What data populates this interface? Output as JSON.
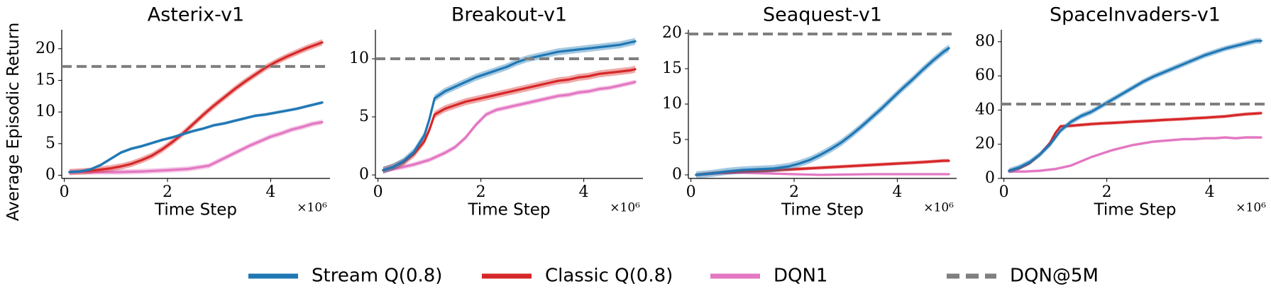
{
  "chart_data": {
    "ylabel": "Average Episodic Return",
    "legend": {
      "placement": "bottom-center",
      "entries": [
        {
          "key": "stream",
          "label": "Stream Q(0.8)",
          "color": "#1f77b4",
          "style": "solid"
        },
        {
          "key": "classic",
          "label": "Classic Q(0.8)",
          "color": "#d62728",
          "style": "solid"
        },
        {
          "key": "dqn1",
          "label": "DQN1",
          "color": "#e377c2",
          "style": "solid"
        },
        {
          "key": "dqn5m",
          "label": "DQN@5M",
          "color": "#7f7f7f",
          "style": "dashed"
        }
      ]
    },
    "panels": [
      {
        "type": "line",
        "title": "Asterix-v1",
        "xlabel": "Time Step",
        "x_multiplier": "×10⁶",
        "xlim": [
          -0.05,
          5.15
        ],
        "ylim": [
          -0.5,
          23
        ],
        "xticks": [
          0,
          2,
          4
        ],
        "yticks": [
          0,
          5,
          10,
          15,
          20
        ],
        "grid": false,
        "baseline": {
          "name": "DQN@5M",
          "value": 17.2
        },
        "series": [
          {
            "key": "stream",
            "name": "Stream Q(0.8)",
            "band": 0.25,
            "x": [
              0.1,
              0.3,
              0.5,
              0.7,
              0.9,
              1.1,
              1.3,
              1.5,
              1.7,
              1.9,
              2.1,
              2.3,
              2.5,
              2.7,
              2.9,
              3.1,
              3.3,
              3.5,
              3.7,
              3.9,
              4.1,
              4.3,
              4.5,
              4.7,
              4.9,
              5.0
            ],
            "y": [
              0.5,
              0.6,
              0.9,
              1.6,
              2.6,
              3.6,
              4.2,
              4.6,
              5.1,
              5.6,
              6.0,
              6.5,
              7.0,
              7.4,
              7.9,
              8.2,
              8.6,
              9.0,
              9.4,
              9.6,
              9.9,
              10.2,
              10.5,
              10.9,
              11.3,
              11.5
            ]
          },
          {
            "key": "classic",
            "name": "Classic Q(0.8)",
            "band": 0.5,
            "x": [
              0.1,
              0.3,
              0.5,
              0.7,
              0.9,
              1.1,
              1.3,
              1.5,
              1.7,
              1.9,
              2.1,
              2.3,
              2.5,
              2.7,
              2.9,
              3.1,
              3.3,
              3.5,
              3.7,
              3.9,
              4.1,
              4.3,
              4.5,
              4.7,
              4.9,
              5.0
            ],
            "y": [
              0.5,
              0.6,
              0.7,
              0.9,
              1.1,
              1.4,
              1.8,
              2.4,
              3.1,
              4.1,
              5.3,
              6.6,
              8.1,
              9.6,
              11.0,
              12.3,
              13.6,
              14.8,
              15.9,
              17.0,
              17.9,
              18.7,
              19.4,
              20.1,
              20.7,
              21.0
            ]
          },
          {
            "key": "dqn1",
            "name": "DQN1",
            "band": 0.4,
            "x": [
              0.1,
              0.5,
              1.0,
              1.5,
              2.0,
              2.4,
              2.8,
              3.0,
              3.2,
              3.4,
              3.6,
              3.8,
              4.0,
              4.2,
              4.4,
              4.6,
              4.8,
              5.0
            ],
            "y": [
              0.5,
              0.5,
              0.5,
              0.6,
              0.8,
              1.0,
              1.5,
              2.3,
              3.1,
              3.9,
              4.7,
              5.4,
              6.1,
              6.6,
              7.2,
              7.6,
              8.1,
              8.4
            ]
          }
        ]
      },
      {
        "type": "line",
        "title": "Breakout-v1",
        "xlabel": "Time Step",
        "x_multiplier": "×10⁶",
        "xlim": [
          -0.05,
          5.15
        ],
        "ylim": [
          -0.3,
          12.5
        ],
        "xticks": [
          0,
          2,
          4
        ],
        "yticks": [
          0,
          5,
          10
        ],
        "grid": false,
        "baseline": {
          "name": "DQN@5M",
          "value": 10.0
        },
        "series": [
          {
            "key": "stream",
            "name": "Stream Q(0.8)",
            "band": 0.3,
            "x": [
              0.1,
              0.3,
              0.5,
              0.7,
              0.9,
              1.0,
              1.1,
              1.3,
              1.5,
              1.7,
              1.9,
              2.1,
              2.3,
              2.5,
              2.7,
              2.9,
              3.1,
              3.3,
              3.5,
              3.7,
              3.9,
              4.1,
              4.3,
              4.5,
              4.7,
              4.9,
              5.0
            ],
            "y": [
              0.4,
              0.7,
              1.2,
              2.0,
              3.4,
              4.8,
              6.6,
              7.2,
              7.6,
              8.0,
              8.4,
              8.7,
              9.0,
              9.3,
              9.7,
              10.0,
              10.2,
              10.4,
              10.6,
              10.7,
              10.8,
              10.9,
              11.0,
              11.1,
              11.2,
              11.4,
              11.5
            ]
          },
          {
            "key": "classic",
            "name": "Classic Q(0.8)",
            "band": 0.3,
            "x": [
              0.1,
              0.3,
              0.5,
              0.7,
              0.9,
              1.0,
              1.1,
              1.3,
              1.5,
              1.7,
              1.9,
              2.1,
              2.3,
              2.5,
              2.7,
              2.9,
              3.1,
              3.3,
              3.5,
              3.7,
              3.9,
              4.1,
              4.3,
              4.5,
              4.7,
              4.9,
              5.0
            ],
            "y": [
              0.4,
              0.7,
              1.1,
              1.8,
              2.9,
              3.9,
              5.2,
              5.7,
              6.0,
              6.3,
              6.5,
              6.7,
              6.9,
              7.1,
              7.3,
              7.5,
              7.7,
              7.9,
              8.1,
              8.2,
              8.4,
              8.5,
              8.7,
              8.8,
              8.9,
              9.0,
              9.1
            ]
          },
          {
            "key": "dqn1",
            "name": "DQN1",
            "band": 0.2,
            "x": [
              0.1,
              0.4,
              0.7,
              1.0,
              1.3,
              1.5,
              1.7,
              1.9,
              2.1,
              2.3,
              2.5,
              2.7,
              2.9,
              3.1,
              3.3,
              3.5,
              3.7,
              3.9,
              4.1,
              4.3,
              4.5,
              4.7,
              4.9,
              5.0
            ],
            "y": [
              0.4,
              0.6,
              0.9,
              1.3,
              1.9,
              2.4,
              3.2,
              4.3,
              5.2,
              5.6,
              5.8,
              6.0,
              6.2,
              6.4,
              6.6,
              6.8,
              6.9,
              7.1,
              7.2,
              7.4,
              7.5,
              7.7,
              7.9,
              8.0
            ]
          }
        ]
      },
      {
        "type": "line",
        "title": "Seaquest-v1",
        "xlabel": "Time Step",
        "x_multiplier": "×10⁶",
        "xlim": [
          -0.05,
          5.15
        ],
        "ylim": [
          -0.5,
          20.5
        ],
        "xticks": [
          0,
          2,
          4
        ],
        "yticks": [
          0,
          5,
          10,
          15,
          20
        ],
        "grid": false,
        "baseline": {
          "name": "DQN@5M",
          "value": 19.9
        },
        "series": [
          {
            "key": "stream",
            "name": "Stream Q(0.8)",
            "band": 0.5,
            "x": [
              0.1,
              0.4,
              0.7,
              1.0,
              1.3,
              1.6,
              1.9,
              2.1,
              2.3,
              2.5,
              2.7,
              2.9,
              3.1,
              3.3,
              3.5,
              3.7,
              3.9,
              4.1,
              4.3,
              4.5,
              4.7,
              4.9,
              5.0
            ],
            "y": [
              0.0,
              0.2,
              0.5,
              0.7,
              0.8,
              0.9,
              1.2,
              1.6,
              2.1,
              2.8,
              3.6,
              4.5,
              5.6,
              6.8,
              8.1,
              9.4,
              10.8,
              12.2,
              13.5,
              14.9,
              16.2,
              17.4,
              17.9
            ]
          },
          {
            "key": "classic",
            "name": "Classic Q(0.8)",
            "band": 0.25,
            "x": [
              0.1,
              0.5,
              1.0,
              1.5,
              2.0,
              2.5,
              3.0,
              3.5,
              4.0,
              4.5,
              4.9,
              5.0
            ],
            "y": [
              0.0,
              0.3,
              0.5,
              0.6,
              0.8,
              1.0,
              1.2,
              1.4,
              1.6,
              1.8,
              2.0,
              2.0
            ]
          },
          {
            "key": "dqn1",
            "name": "DQN1",
            "band": 0.08,
            "x": [
              0.1,
              0.5,
              1.0,
              1.5,
              2.0,
              2.5,
              3.0,
              3.5,
              4.0,
              4.5,
              5.0
            ],
            "y": [
              0.0,
              0.2,
              0.3,
              0.2,
              0.1,
              0.0,
              0.05,
              0.1,
              0.1,
              0.1,
              0.1
            ]
          }
        ]
      },
      {
        "type": "line",
        "title": "SpaceInvaders-v1",
        "xlabel": "Time Step",
        "x_multiplier": "×10⁶",
        "xlim": [
          -0.05,
          5.15
        ],
        "ylim": [
          0,
          87
        ],
        "xticks": [
          0,
          2,
          4
        ],
        "yticks": [
          0,
          20,
          40,
          60,
          80
        ],
        "grid": false,
        "baseline": {
          "name": "DQN@5M",
          "value": 43.5
        },
        "series": [
          {
            "key": "stream",
            "name": "Stream Q(0.8)",
            "band": 1.6,
            "x": [
              0.1,
              0.3,
              0.5,
              0.7,
              0.9,
              1.1,
              1.3,
              1.5,
              1.7,
              1.9,
              2.1,
              2.3,
              2.5,
              2.7,
              2.9,
              3.1,
              3.3,
              3.5,
              3.7,
              3.9,
              4.1,
              4.3,
              4.5,
              4.7,
              4.9,
              5.0
            ],
            "y": [
              4.5,
              6.5,
              9.5,
              14.0,
              20.0,
              28.0,
              33.0,
              36.5,
              39.0,
              42.5,
              46.0,
              49.5,
              53.0,
              56.5,
              59.5,
              62.0,
              64.5,
              67.0,
              69.5,
              72.0,
              74.0,
              76.0,
              77.5,
              79.0,
              80.5,
              80.5
            ]
          },
          {
            "key": "classic",
            "name": "Classic Q(0.8)",
            "band": 1.0,
            "x": [
              0.1,
              0.3,
              0.5,
              0.7,
              0.9,
              1.0,
              1.1,
              1.3,
              1.5,
              1.7,
              1.9,
              2.1,
              2.3,
              2.5,
              2.7,
              2.9,
              3.1,
              3.3,
              3.5,
              3.7,
              3.9,
              4.1,
              4.3,
              4.5,
              4.7,
              4.9,
              5.0
            ],
            "y": [
              4.5,
              6.0,
              9.0,
              14.0,
              21.0,
              26.5,
              30.5,
              30.8,
              31.3,
              31.8,
              32.2,
              32.5,
              32.8,
              33.2,
              33.5,
              33.8,
              34.2,
              34.5,
              34.8,
              35.2,
              35.5,
              35.9,
              36.3,
              37.0,
              37.6,
              38.0,
              38.2
            ]
          },
          {
            "key": "dqn1",
            "name": "DQN1",
            "band": 0.8,
            "x": [
              0.1,
              0.4,
              0.7,
              1.0,
              1.3,
              1.5,
              1.7,
              1.9,
              2.1,
              2.3,
              2.5,
              2.7,
              2.9,
              3.1,
              3.3,
              3.5,
              3.7,
              3.9,
              4.1,
              4.3,
              4.5,
              4.7,
              4.9,
              5.0
            ],
            "y": [
              4.0,
              4.0,
              4.5,
              5.5,
              7.5,
              10.0,
              12.5,
              14.5,
              16.5,
              18.0,
              19.5,
              20.5,
              21.5,
              22.0,
              22.5,
              23.0,
              23.0,
              23.5,
              23.5,
              24.0,
              23.5,
              24.0,
              24.0,
              24.0
            ]
          }
        ]
      }
    ]
  }
}
